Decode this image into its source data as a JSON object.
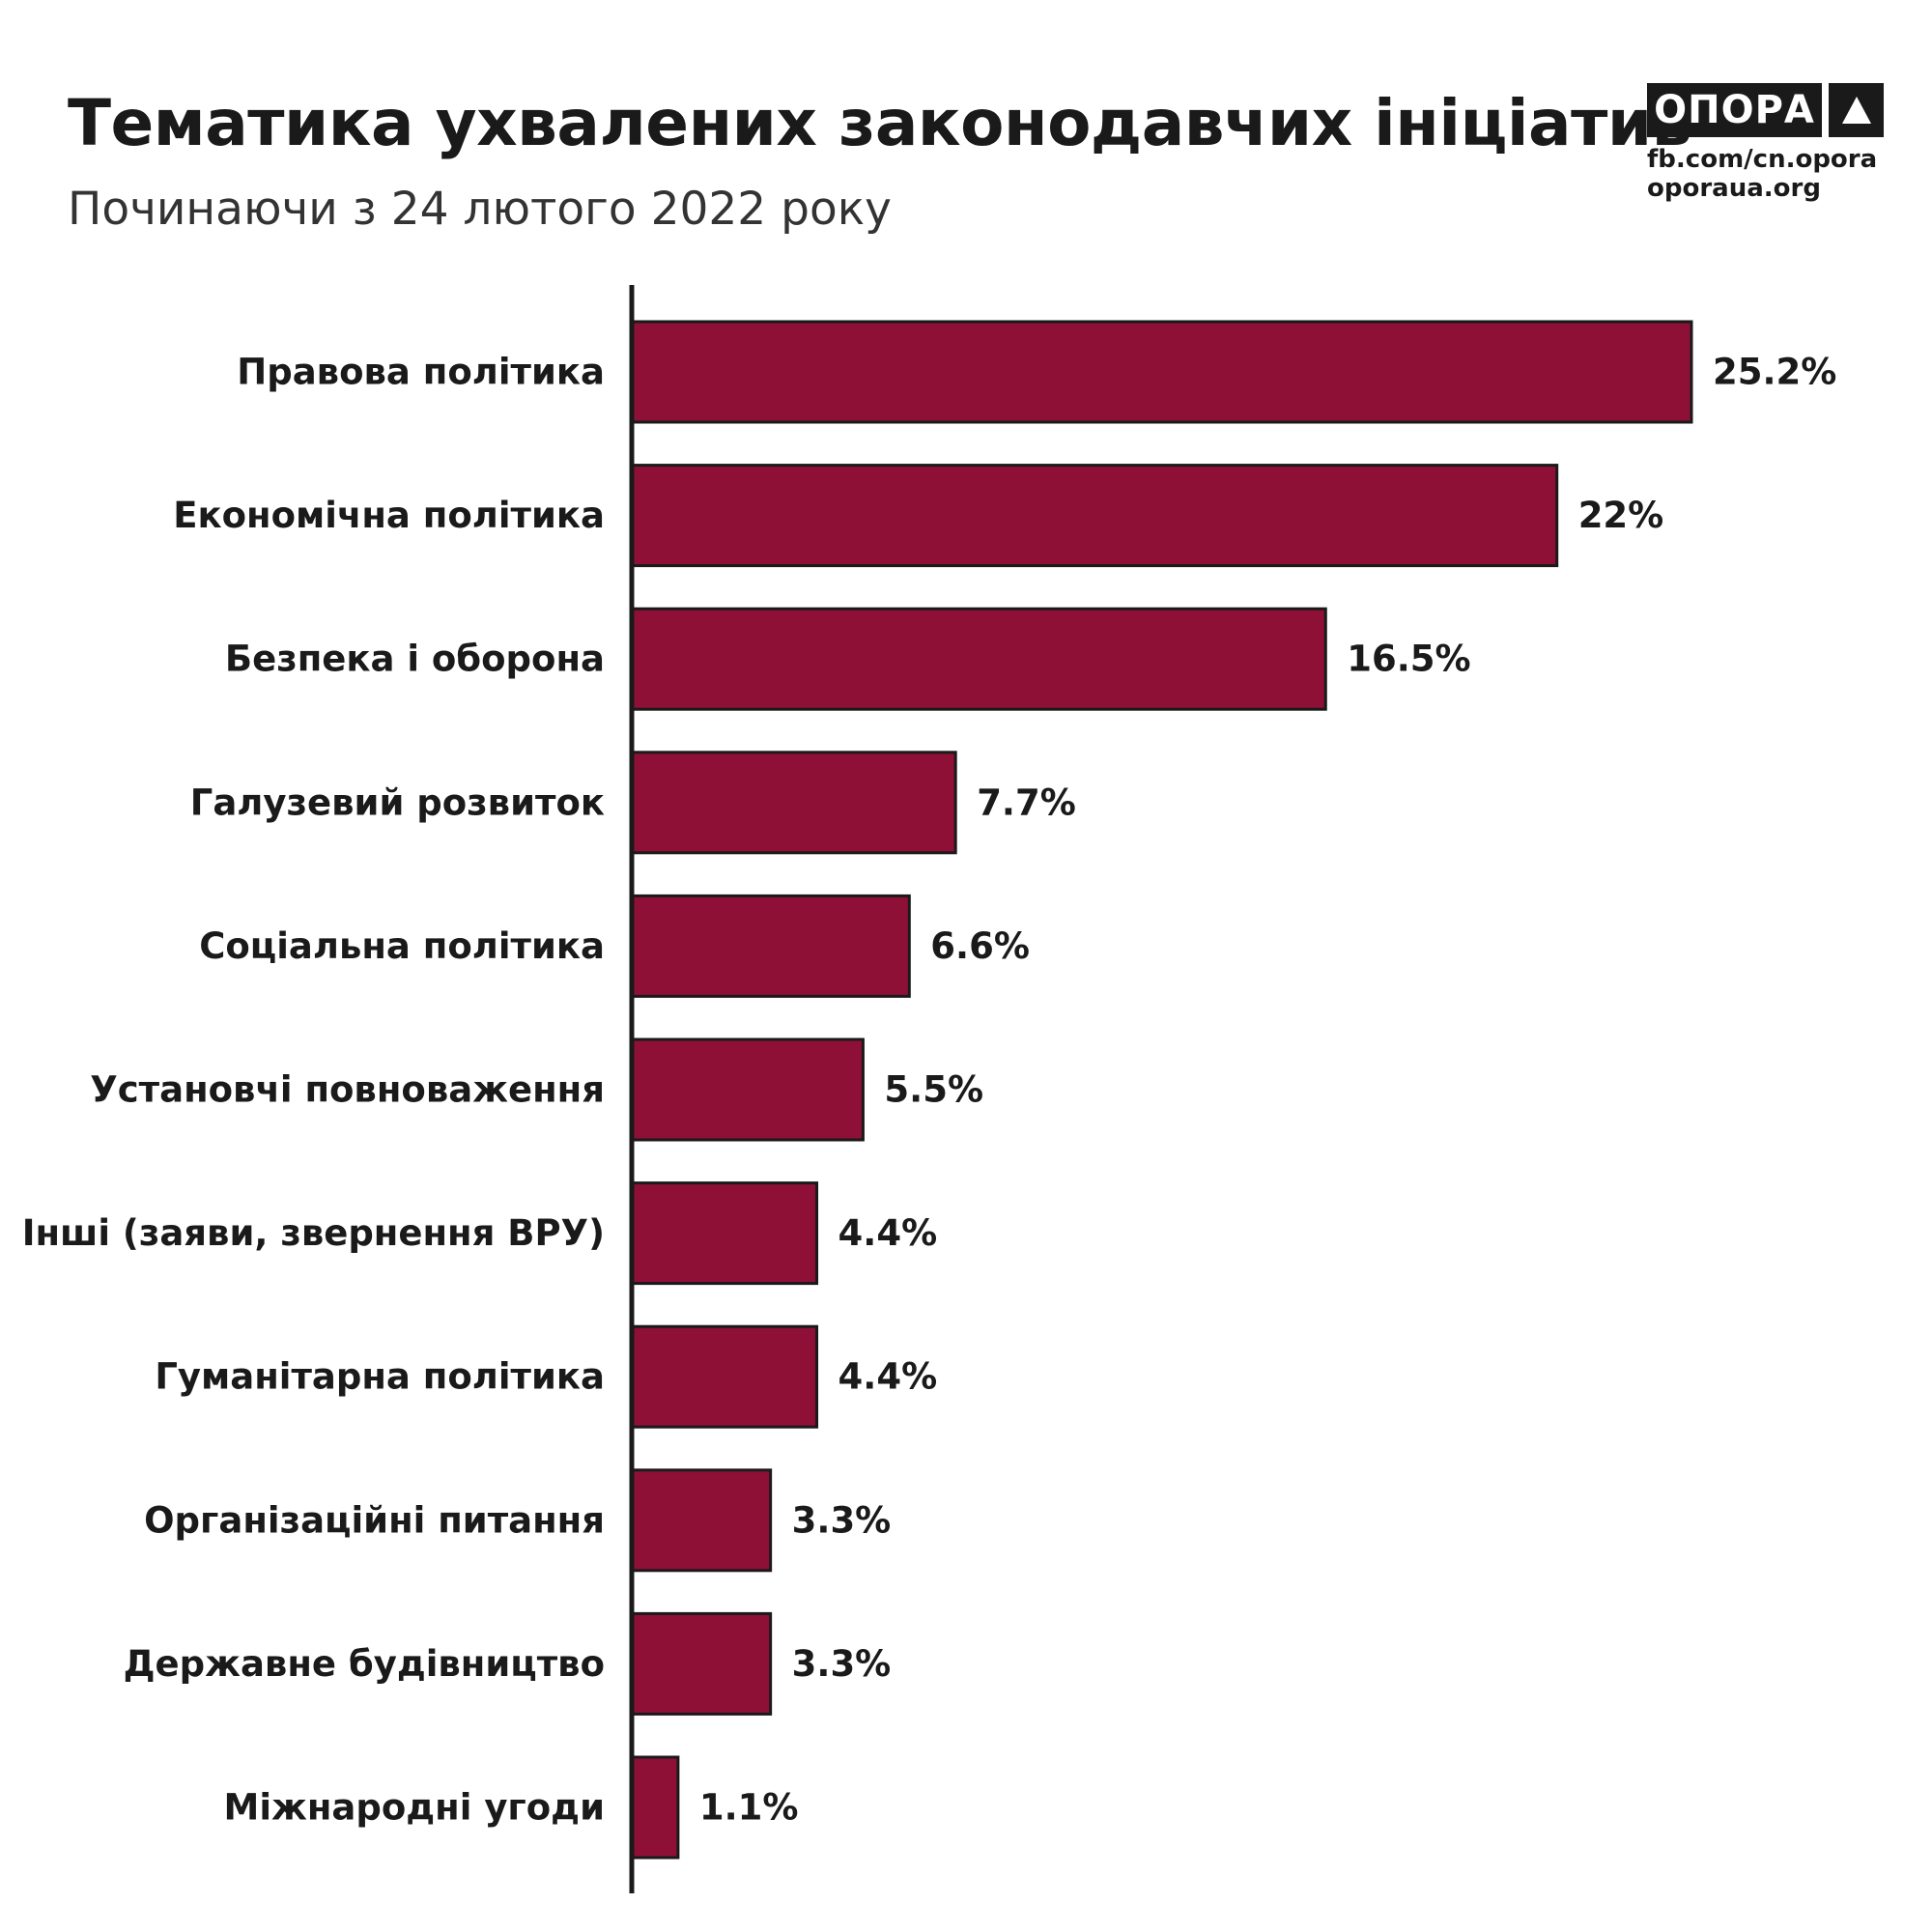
{
  "header": {
    "title": "Тематика ухвалених законодавчих ініціатив",
    "subtitle": "Починаючи з 24 лютого 2022 року"
  },
  "brand": {
    "logo_text": "ОПОРА",
    "logo_icon": "triangle-icon",
    "links": [
      "fb.com/cn.opora",
      "oporaua.org"
    ]
  },
  "colors": {
    "bar": "#8f1037",
    "bar_outline": "#1a1a1a",
    "axis": "#1a1a1a",
    "text": "#1a1a1a"
  },
  "chart_data": {
    "type": "bar",
    "orientation": "horizontal",
    "title": "Тематика ухвалених законодавчих ініціатив",
    "subtitle": "Починаючи з 24 лютого 2022 року",
    "categories": [
      "Правова політика",
      "Економічна політика",
      "Безпека і оборона",
      "Галузевий розвиток",
      "Соціальна політика",
      "Установчі повноваження",
      "Інші (заяви, звернення ВРУ)",
      "Гуманітарна політика",
      "Організаційні питання",
      "Державне будівництво",
      "Міжнародні угоди"
    ],
    "values": [
      25.2,
      22,
      16.5,
      7.7,
      6.6,
      5.5,
      4.4,
      4.4,
      3.3,
      3.3,
      1.1
    ],
    "value_labels": [
      "25.2%",
      "22%",
      "16.5%",
      "7.7%",
      "6.6%",
      "5.5%",
      "4.4%",
      "4.4%",
      "3.3%",
      "3.3%",
      "1.1%"
    ],
    "unit": "%",
    "xlim": [
      0,
      25.2
    ],
    "grid": false,
    "legend": "none"
  }
}
